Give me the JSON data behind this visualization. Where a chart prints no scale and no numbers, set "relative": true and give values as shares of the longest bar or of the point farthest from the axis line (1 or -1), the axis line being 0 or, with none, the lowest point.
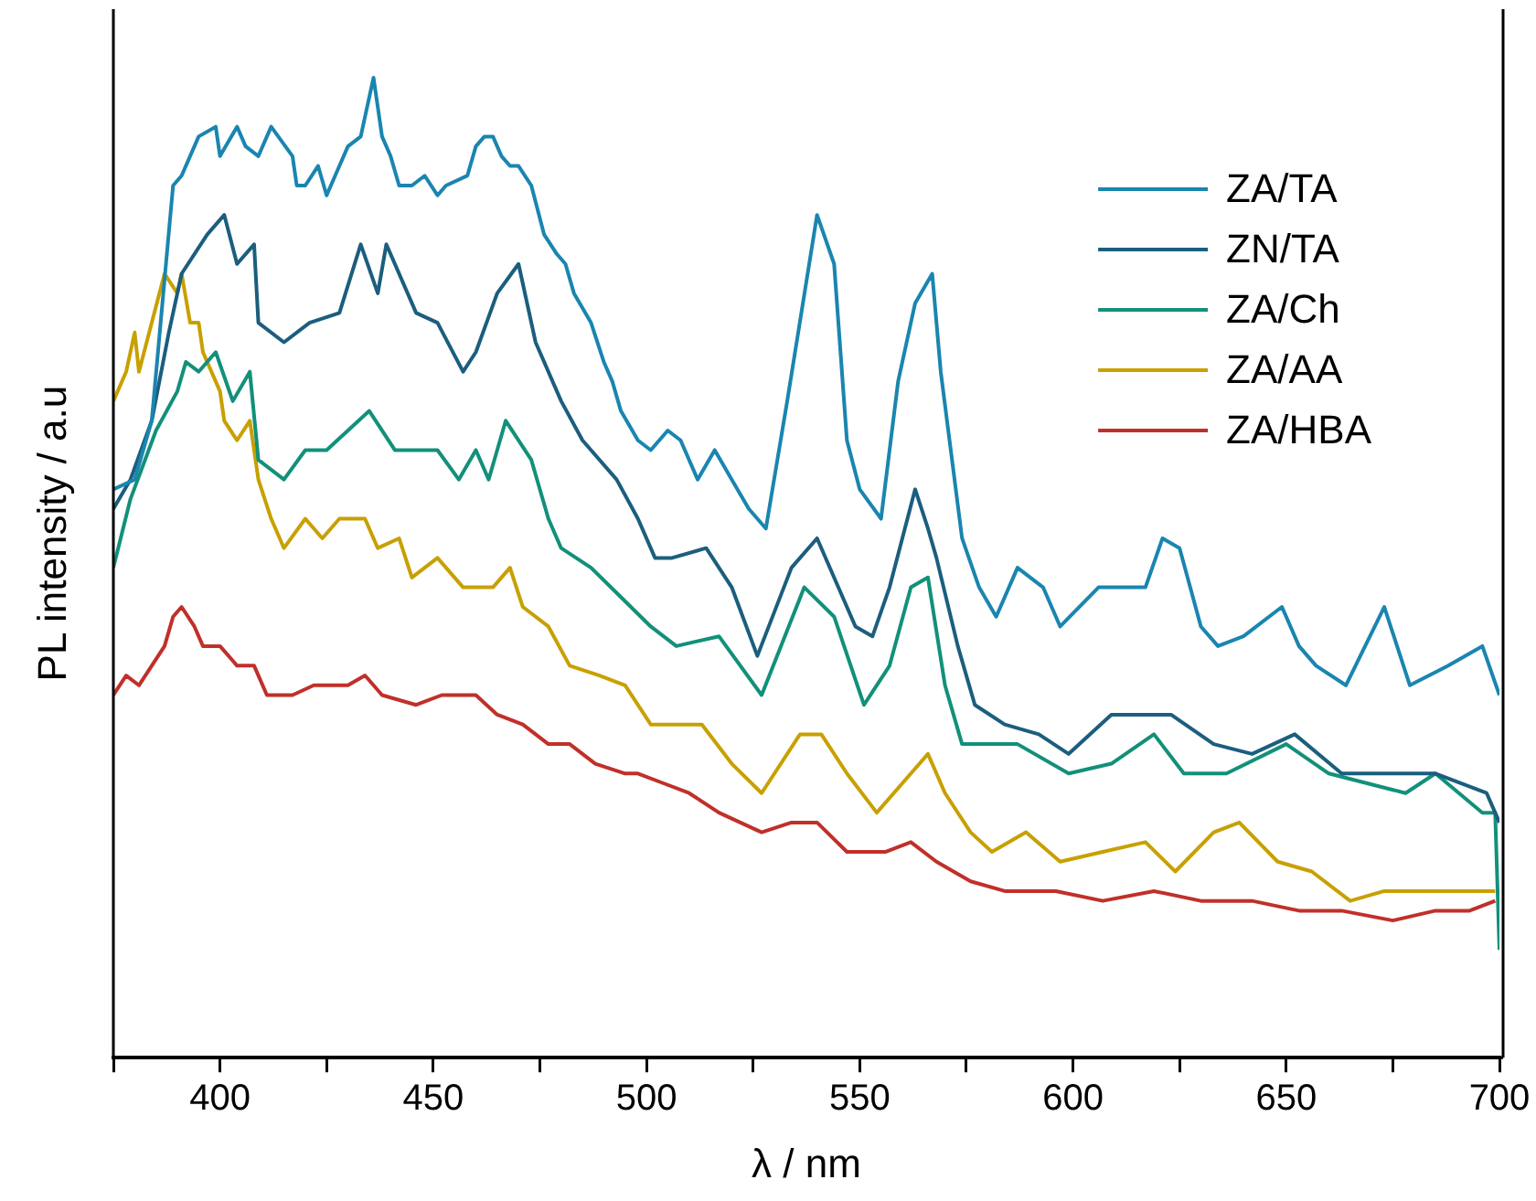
{
  "chart_data": {
    "type": "line",
    "xlabel": "λ / nm",
    "ylabel": "PL intensity / a.u",
    "relative": true,
    "legend": "top right",
    "marker": "none",
    "grid": false,
    "xlim": [
      375,
      700
    ],
    "xticks": [
      {
        "value": 375,
        "label": null
      },
      400,
      {
        "value": 425,
        "label": null
      },
      450,
      {
        "value": 475,
        "label": null
      },
      500,
      {
        "value": 525,
        "label": null
      },
      550,
      {
        "value": 575,
        "label": null
      },
      600,
      {
        "value": 625,
        "label": null
      },
      650,
      {
        "value": 675,
        "label": null
      },
      700
    ],
    "series": [
      {
        "name": "ZA/TA",
        "color": "#1a85b0",
        "x": [
          375,
          380,
          384,
          389,
          391,
          395,
          399,
          400,
          404,
          406,
          409,
          412,
          417,
          418,
          420,
          423,
          425,
          427,
          430,
          433,
          434,
          436,
          438,
          440,
          442,
          445,
          448,
          451,
          453,
          458,
          460,
          462,
          464,
          466,
          468,
          470,
          473,
          476,
          479,
          481,
          483,
          487,
          490,
          492,
          494,
          498,
          501,
          505,
          508,
          512,
          516,
          520,
          524,
          528,
          533,
          540,
          544,
          547,
          550,
          555,
          559,
          563,
          567,
          569,
          574,
          578,
          582,
          587,
          593,
          597,
          606,
          617,
          621,
          625,
          630,
          634,
          640,
          649,
          653,
          657,
          664,
          673,
          679,
          688,
          696,
          700
        ],
        "values": [
          0.58,
          0.59,
          0.65,
          0.89,
          0.9,
          0.94,
          0.95,
          0.92,
          0.95,
          0.93,
          0.92,
          0.95,
          0.92,
          0.89,
          0.89,
          0.91,
          0.88,
          0.9,
          0.93,
          0.94,
          0.96,
          1.0,
          0.94,
          0.92,
          0.89,
          0.89,
          0.9,
          0.88,
          0.89,
          0.9,
          0.93,
          0.94,
          0.94,
          0.92,
          0.91,
          0.91,
          0.89,
          0.84,
          0.82,
          0.81,
          0.78,
          0.75,
          0.71,
          0.69,
          0.66,
          0.63,
          0.62,
          0.64,
          0.63,
          0.59,
          0.62,
          0.59,
          0.56,
          0.54,
          0.67,
          0.86,
          0.81,
          0.63,
          0.58,
          0.55,
          0.69,
          0.77,
          0.8,
          0.7,
          0.53,
          0.48,
          0.45,
          0.5,
          0.48,
          0.44,
          0.48,
          0.48,
          0.53,
          0.52,
          0.44,
          0.42,
          0.43,
          0.46,
          0.42,
          0.4,
          0.38,
          0.46,
          0.38,
          0.4,
          0.42,
          0.37
        ]
      },
      {
        "name": "ZN/TA",
        "color": "#1b5e7e",
        "x": [
          375,
          379,
          384,
          388,
          391,
          397,
          401,
          404,
          408,
          409,
          415,
          421,
          428,
          433,
          437,
          439,
          446,
          451,
          457,
          460,
          465,
          470,
          474,
          480,
          485,
          493,
          498,
          502,
          506,
          514,
          520,
          526,
          534,
          540,
          549,
          553,
          557,
          563,
          566,
          568,
          573,
          577,
          584,
          592,
          599,
          609,
          623,
          633,
          642,
          652,
          663,
          678,
          685,
          697,
          700
        ],
        "values": [
          0.56,
          0.59,
          0.65,
          0.74,
          0.8,
          0.84,
          0.86,
          0.81,
          0.83,
          0.75,
          0.73,
          0.75,
          0.76,
          0.83,
          0.78,
          0.83,
          0.76,
          0.75,
          0.7,
          0.72,
          0.78,
          0.81,
          0.73,
          0.67,
          0.63,
          0.59,
          0.55,
          0.51,
          0.51,
          0.52,
          0.48,
          0.41,
          0.5,
          0.53,
          0.44,
          0.43,
          0.48,
          0.58,
          0.54,
          0.51,
          0.42,
          0.36,
          0.34,
          0.33,
          0.31,
          0.35,
          0.35,
          0.32,
          0.31,
          0.33,
          0.29,
          0.29,
          0.29,
          0.27,
          0.24
        ]
      },
      {
        "name": "ZA/Ch",
        "color": "#12907a",
        "x": [
          375,
          379,
          385,
          390,
          392,
          395,
          399,
          403,
          407,
          409,
          415,
          420,
          425,
          430,
          435,
          441,
          446,
          451,
          456,
          460,
          463,
          467,
          473,
          477,
          480,
          487,
          494,
          501,
          507,
          517,
          527,
          537,
          544,
          551,
          557,
          562,
          566,
          570,
          574,
          579,
          587,
          599,
          609,
          619,
          626,
          636,
          650,
          660,
          678,
          685,
          696,
          699,
          700
        ],
        "values": [
          0.5,
          0.57,
          0.64,
          0.68,
          0.71,
          0.7,
          0.72,
          0.67,
          0.7,
          0.61,
          0.59,
          0.62,
          0.62,
          0.64,
          0.66,
          0.62,
          0.62,
          0.62,
          0.59,
          0.62,
          0.59,
          0.65,
          0.61,
          0.55,
          0.52,
          0.5,
          0.47,
          0.44,
          0.42,
          0.43,
          0.37,
          0.48,
          0.45,
          0.36,
          0.4,
          0.48,
          0.49,
          0.38,
          0.32,
          0.32,
          0.32,
          0.29,
          0.3,
          0.33,
          0.29,
          0.29,
          0.32,
          0.29,
          0.27,
          0.29,
          0.25,
          0.25,
          0.11
        ]
      },
      {
        "name": "ZA/AA",
        "color": "#c8a000",
        "x": [
          375,
          378,
          380,
          381,
          384,
          387,
          390,
          391,
          393,
          395,
          396,
          400,
          401,
          404,
          407,
          409,
          412,
          415,
          420,
          424,
          428,
          434,
          437,
          442,
          445,
          451,
          457,
          464,
          468,
          471,
          477,
          482,
          489,
          495,
          501,
          506,
          513,
          520,
          527,
          536,
          541,
          547,
          554,
          562,
          566,
          570,
          576,
          581,
          589,
          597,
          607,
          617,
          624,
          633,
          639,
          648,
          656,
          665,
          673,
          682,
          692,
          699
        ],
        "values": [
          0.67,
          0.7,
          0.74,
          0.7,
          0.75,
          0.8,
          0.78,
          0.8,
          0.75,
          0.75,
          0.72,
          0.68,
          0.65,
          0.63,
          0.65,
          0.59,
          0.55,
          0.52,
          0.55,
          0.53,
          0.55,
          0.55,
          0.52,
          0.53,
          0.49,
          0.51,
          0.48,
          0.48,
          0.5,
          0.46,
          0.44,
          0.4,
          0.39,
          0.38,
          0.34,
          0.34,
          0.34,
          0.3,
          0.27,
          0.33,
          0.33,
          0.29,
          0.25,
          0.29,
          0.31,
          0.27,
          0.23,
          0.21,
          0.23,
          0.2,
          0.21,
          0.22,
          0.19,
          0.23,
          0.24,
          0.2,
          0.19,
          0.16,
          0.17,
          0.17,
          0.17,
          0.17
        ]
      },
      {
        "name": "ZA/HBA",
        "color": "#c0302a",
        "x": [
          375,
          378,
          381,
          384,
          387,
          389,
          391,
          394,
          396,
          400,
          404,
          408,
          411,
          417,
          422,
          430,
          434,
          438,
          446,
          452,
          460,
          465,
          471,
          477,
          482,
          488,
          495,
          498,
          504,
          510,
          517,
          527,
          534,
          540,
          547,
          556,
          562,
          568,
          576,
          584,
          596,
          607,
          619,
          630,
          642,
          653,
          663,
          675,
          685,
          693,
          699
        ],
        "values": [
          0.37,
          0.39,
          0.38,
          0.4,
          0.42,
          0.45,
          0.46,
          0.44,
          0.42,
          0.42,
          0.4,
          0.4,
          0.37,
          0.37,
          0.38,
          0.38,
          0.39,
          0.37,
          0.36,
          0.37,
          0.37,
          0.35,
          0.34,
          0.32,
          0.32,
          0.3,
          0.29,
          0.29,
          0.28,
          0.27,
          0.25,
          0.23,
          0.24,
          0.24,
          0.21,
          0.21,
          0.22,
          0.2,
          0.18,
          0.17,
          0.17,
          0.16,
          0.17,
          0.16,
          0.16,
          0.15,
          0.15,
          0.14,
          0.15,
          0.15,
          0.16
        ]
      }
    ]
  }
}
